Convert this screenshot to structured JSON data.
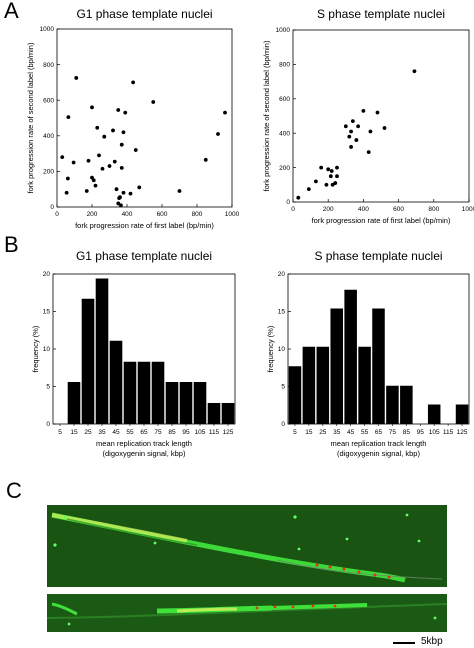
{
  "panels": {
    "a": "A",
    "b": "B",
    "c": "C"
  },
  "chart_data": [
    {
      "type": "scatter",
      "title": "G1 phase template nuclei",
      "xlabel": "fork progression rate of first label (bp/min)",
      "ylabel": "fork progression rate of second label (bp/min)",
      "xlim": [
        0,
        1000
      ],
      "ylim": [
        0,
        1000
      ],
      "xticks": [
        "0",
        "200",
        "400",
        "600",
        "800",
        "1000"
      ],
      "yticks": [
        "0",
        "200",
        "400",
        "600",
        "800",
        "1000"
      ],
      "points": [
        [
          30,
          280
        ],
        [
          55,
          80
        ],
        [
          62,
          160
        ],
        [
          65,
          505
        ],
        [
          95,
          250
        ],
        [
          110,
          725
        ],
        [
          170,
          90
        ],
        [
          180,
          260
        ],
        [
          200,
          165
        ],
        [
          200,
          560
        ],
        [
          210,
          150
        ],
        [
          220,
          120
        ],
        [
          230,
          445
        ],
        [
          240,
          290
        ],
        [
          260,
          215
        ],
        [
          270,
          395
        ],
        [
          300,
          230
        ],
        [
          320,
          430
        ],
        [
          330,
          255
        ],
        [
          340,
          100
        ],
        [
          350,
          545
        ],
        [
          350,
          20
        ],
        [
          355,
          50
        ],
        [
          360,
          55
        ],
        [
          365,
          10
        ],
        [
          370,
          220
        ],
        [
          370,
          350
        ],
        [
          380,
          420
        ],
        [
          380,
          80
        ],
        [
          390,
          530
        ],
        [
          420,
          75
        ],
        [
          435,
          700
        ],
        [
          450,
          320
        ],
        [
          470,
          110
        ],
        [
          550,
          590
        ],
        [
          700,
          90
        ],
        [
          850,
          265
        ],
        [
          920,
          410
        ],
        [
          960,
          530
        ]
      ]
    },
    {
      "type": "scatter",
      "title": "S phase template nuclei",
      "xlabel": "fork progression rate of first label (bp/min)",
      "ylabel": "fork progression rate of second label (bp/min)",
      "xlim": [
        0,
        1000
      ],
      "ylim": [
        0,
        1000
      ],
      "xticks": [
        "0",
        "200",
        "400",
        "600",
        "800",
        "1000"
      ],
      "yticks": [
        "0",
        "200",
        "400",
        "600",
        "800",
        "1000"
      ],
      "points": [
        [
          30,
          25
        ],
        [
          90,
          75
        ],
        [
          130,
          120
        ],
        [
          160,
          200
        ],
        [
          190,
          100
        ],
        [
          200,
          190
        ],
        [
          215,
          150
        ],
        [
          220,
          180
        ],
        [
          225,
          100
        ],
        [
          240,
          110
        ],
        [
          250,
          200
        ],
        [
          250,
          150
        ],
        [
          300,
          440
        ],
        [
          320,
          380
        ],
        [
          330,
          320
        ],
        [
          330,
          410
        ],
        [
          340,
          470
        ],
        [
          360,
          360
        ],
        [
          370,
          440
        ],
        [
          400,
          530
        ],
        [
          430,
          290
        ],
        [
          440,
          410
        ],
        [
          480,
          520
        ],
        [
          520,
          430
        ],
        [
          690,
          760
        ]
      ]
    },
    {
      "type": "bar",
      "title": "G1 phase template nuclei",
      "xlabel": "mean replication track length (digoxygenin signal, kbp)",
      "ylabel": "frequency (%)",
      "ylim": [
        0,
        20
      ],
      "yticks": [
        "0",
        "5",
        "10",
        "15",
        "20"
      ],
      "categories": [
        "5",
        "15",
        "25",
        "35",
        "45",
        "55",
        "65",
        "75",
        "85",
        "95",
        "105",
        "115",
        "125"
      ],
      "values": [
        0,
        5.6,
        16.7,
        19.4,
        11.1,
        8.3,
        8.3,
        8.3,
        5.6,
        5.6,
        5.6,
        2.8,
        2.8
      ]
    },
    {
      "type": "bar",
      "title": "S phase template nuclei",
      "xlabel": "mean replication track length (digoxygenin signal, kbp)",
      "ylabel": "frequency (%)",
      "ylim": [
        0,
        20
      ],
      "yticks": [
        "0",
        "5",
        "10",
        "15",
        "20"
      ],
      "categories": [
        "5",
        "15",
        "25",
        "35",
        "45",
        "55",
        "65",
        "75",
        "85",
        "95",
        "105",
        "115",
        "125"
      ],
      "values": [
        7.7,
        10.3,
        10.3,
        15.4,
        17.9,
        10.3,
        15.4,
        5.1,
        5.1,
        0,
        2.6,
        0,
        2.6
      ]
    }
  ],
  "micrograph": {
    "scale_label": "5kbp",
    "background": "#1b5a14",
    "fiber_color": "#3fe03a",
    "highlight_color": "#e8e050",
    "label_color": "#e03020"
  }
}
